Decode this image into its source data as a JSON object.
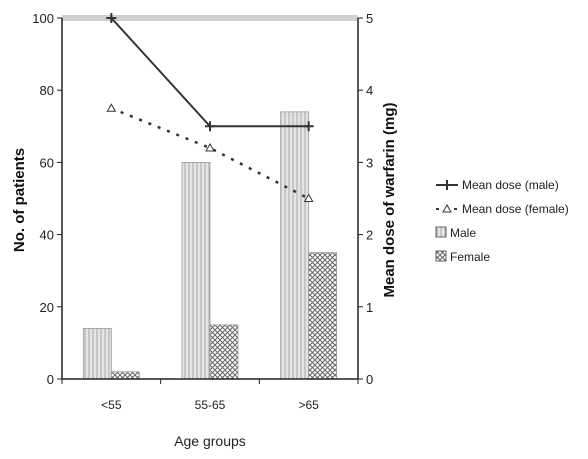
{
  "chart_data": {
    "type": "bar",
    "xlabel": "Age groups",
    "ylabel": "No. of patients",
    "y2label": "Mean dose of warfarin (mg)",
    "categories": [
      "<55",
      "55-65",
      ">65"
    ],
    "ylim": [
      0,
      100
    ],
    "yticks": [
      0,
      20,
      40,
      60,
      80,
      100
    ],
    "y2lim": [
      0,
      5
    ],
    "y2ticks": [
      0,
      1,
      2,
      3,
      4,
      5
    ],
    "grid": false,
    "legend_position": "right",
    "bar_series": [
      {
        "name": "Male",
        "values": [
          14,
          60,
          74
        ],
        "color": "#d9d9d9",
        "pattern": "vertical-stripes"
      },
      {
        "name": "Female",
        "values": [
          2,
          15,
          35
        ],
        "color": "#9a9a9a",
        "pattern": "crosshatch"
      }
    ],
    "line_series": [
      {
        "name": "Mean dose (male)",
        "axis": "right",
        "values": [
          5.0,
          3.5,
          3.5
        ],
        "color": "#333333",
        "style": "solid",
        "marker": "plus"
      },
      {
        "name": "Mean dose (female)",
        "axis": "right",
        "values": [
          3.75,
          3.2,
          2.5
        ],
        "color": "#333333",
        "style": "dotted",
        "marker": "triangle"
      }
    ]
  }
}
